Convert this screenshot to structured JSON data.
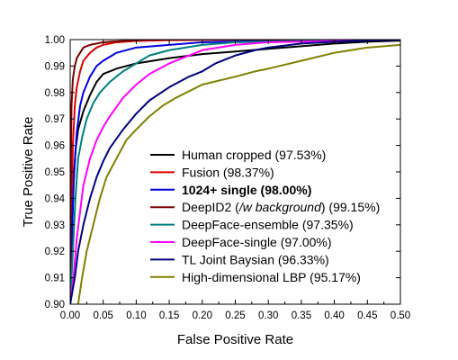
{
  "chart_data": {
    "type": "line",
    "title": "",
    "xlabel": "False Positive Rate",
    "ylabel": "True Positive Rate",
    "xlim": [
      0,
      0.5
    ],
    "ylim": [
      0.9,
      1.0
    ],
    "x_ticks": [
      "0.00",
      "0.05",
      "0.10",
      "0.15",
      "0.20",
      "0.25",
      "0.30",
      "0.35",
      "0.40",
      "0.45",
      "0.50"
    ],
    "y_ticks": [
      "0.90",
      "0.91",
      "0.92",
      "0.93",
      "0.94",
      "0.95",
      "0.96",
      "0.97",
      "0.98",
      "0.99",
      "1.00"
    ],
    "grid": false,
    "legend_position": "bottom-right",
    "series": [
      {
        "name": "Human cropped (97.53%)",
        "label_parts": [
          {
            "text": "Human cropped (97.53%)"
          }
        ],
        "color": "#000000",
        "points": [
          [
            0,
            0.9
          ],
          [
            0.002,
            0.92
          ],
          [
            0.005,
            0.945
          ],
          [
            0.008,
            0.958
          ],
          [
            0.012,
            0.966
          ],
          [
            0.02,
            0.973
          ],
          [
            0.03,
            0.979
          ],
          [
            0.04,
            0.984
          ],
          [
            0.05,
            0.987
          ],
          [
            0.07,
            0.989
          ],
          [
            0.1,
            0.991
          ],
          [
            0.15,
            0.993
          ],
          [
            0.2,
            0.9945
          ],
          [
            0.25,
            0.9955
          ],
          [
            0.3,
            0.9965
          ],
          [
            0.35,
            0.9975
          ],
          [
            0.4,
            0.9985
          ],
          [
            0.45,
            0.9992
          ],
          [
            0.5,
            0.9996
          ]
        ]
      },
      {
        "name": "Fusion (98.37%)",
        "label_parts": [
          {
            "text": "Fusion (98.37%)"
          }
        ],
        "color": "#e00000",
        "points": [
          [
            0,
            0.9
          ],
          [
            0.002,
            0.93
          ],
          [
            0.004,
            0.96
          ],
          [
            0.007,
            0.975
          ],
          [
            0.01,
            0.982
          ],
          [
            0.015,
            0.988
          ],
          [
            0.02,
            0.992
          ],
          [
            0.03,
            0.995
          ],
          [
            0.04,
            0.997
          ],
          [
            0.05,
            0.998
          ],
          [
            0.07,
            0.999
          ],
          [
            0.1,
            0.9995
          ],
          [
            0.15,
            0.9998
          ],
          [
            0.3,
            1.0
          ],
          [
            0.5,
            1.0
          ]
        ]
      },
      {
        "name": "1024+ single (98.00%)",
        "label_parts": [
          {
            "text": "1024+ single (98.00%)",
            "bold": true
          }
        ],
        "color": "#0000e0",
        "points": [
          [
            0,
            0.9
          ],
          [
            0.003,
            0.93
          ],
          [
            0.006,
            0.95
          ],
          [
            0.01,
            0.965
          ],
          [
            0.015,
            0.975
          ],
          [
            0.02,
            0.98
          ],
          [
            0.03,
            0.986
          ],
          [
            0.04,
            0.99
          ],
          [
            0.05,
            0.992
          ],
          [
            0.07,
            0.995
          ],
          [
            0.1,
            0.997
          ],
          [
            0.15,
            0.998
          ],
          [
            0.2,
            0.999
          ],
          [
            0.3,
            0.9995
          ],
          [
            0.5,
            1.0
          ]
        ]
      },
      {
        "name": "DeepID2 (/w background) (99.15%)",
        "label_parts": [
          {
            "text": "DeepID2 ("
          },
          {
            "text": "/w background",
            "italic": true
          },
          {
            "text": ") (99.15%)"
          }
        ],
        "color": "#7a0000",
        "points": [
          [
            0,
            0.9
          ],
          [
            0.001,
            0.95
          ],
          [
            0.002,
            0.975
          ],
          [
            0.004,
            0.985
          ],
          [
            0.007,
            0.99
          ],
          [
            0.01,
            0.993
          ],
          [
            0.015,
            0.995
          ],
          [
            0.02,
            0.997
          ],
          [
            0.03,
            0.998
          ],
          [
            0.05,
            0.999
          ],
          [
            0.08,
            0.9995
          ],
          [
            0.12,
            1.0
          ],
          [
            0.5,
            1.0
          ]
        ]
      },
      {
        "name": "DeepFace-ensemble (97.35%)",
        "label_parts": [
          {
            "text": "DeepFace-ensemble (97.35%)"
          }
        ],
        "color": "#008080",
        "points": [
          [
            0,
            0.9
          ],
          [
            0.004,
            0.92
          ],
          [
            0.008,
            0.94
          ],
          [
            0.012,
            0.955
          ],
          [
            0.018,
            0.963
          ],
          [
            0.025,
            0.97
          ],
          [
            0.035,
            0.976
          ],
          [
            0.045,
            0.98
          ],
          [
            0.06,
            0.984
          ],
          [
            0.08,
            0.988
          ],
          [
            0.1,
            0.991
          ],
          [
            0.12,
            0.994
          ],
          [
            0.15,
            0.996
          ],
          [
            0.2,
            0.998
          ],
          [
            0.25,
            0.999
          ],
          [
            0.35,
            0.9995
          ],
          [
            0.5,
            1.0
          ]
        ]
      },
      {
        "name": "DeepFace-single (97.00%)",
        "label_parts": [
          {
            "text": "DeepFace-single (97.00%)"
          }
        ],
        "color": "#ff00ff",
        "points": [
          [
            0,
            0.9
          ],
          [
            0.005,
            0.91
          ],
          [
            0.01,
            0.925
          ],
          [
            0.015,
            0.935
          ],
          [
            0.02,
            0.945
          ],
          [
            0.03,
            0.955
          ],
          [
            0.04,
            0.962
          ],
          [
            0.05,
            0.967
          ],
          [
            0.06,
            0.971
          ],
          [
            0.08,
            0.978
          ],
          [
            0.1,
            0.983
          ],
          [
            0.12,
            0.987
          ],
          [
            0.15,
            0.991
          ],
          [
            0.18,
            0.994
          ],
          [
            0.2,
            0.996
          ],
          [
            0.25,
            0.998
          ],
          [
            0.3,
            0.999
          ],
          [
            0.4,
            0.9995
          ],
          [
            0.5,
            1.0
          ]
        ]
      },
      {
        "name": "TL Joint Baysian (96.33%)",
        "label_parts": [
          {
            "text": "TL Joint Baysian (96.33%)"
          }
        ],
        "color": "#000080",
        "points": [
          [
            0,
            0.9
          ],
          [
            0.007,
            0.91
          ],
          [
            0.012,
            0.92
          ],
          [
            0.02,
            0.93
          ],
          [
            0.03,
            0.94
          ],
          [
            0.04,
            0.948
          ],
          [
            0.05,
            0.954
          ],
          [
            0.06,
            0.959
          ],
          [
            0.08,
            0.966
          ],
          [
            0.1,
            0.972
          ],
          [
            0.12,
            0.977
          ],
          [
            0.15,
            0.982
          ],
          [
            0.18,
            0.986
          ],
          [
            0.2,
            0.988
          ],
          [
            0.22,
            0.991
          ],
          [
            0.25,
            0.994
          ],
          [
            0.28,
            0.996
          ],
          [
            0.3,
            0.997
          ],
          [
            0.35,
            0.9985
          ],
          [
            0.4,
            0.9992
          ],
          [
            0.5,
            1.0
          ]
        ]
      },
      {
        "name": "High-dimensional LBP (95.17%)",
        "label_parts": [
          {
            "text": "High-dimensional LBP (95.17%)"
          }
        ],
        "color": "#808000",
        "points": [
          [
            0.012,
            0.9
          ],
          [
            0.018,
            0.91
          ],
          [
            0.025,
            0.92
          ],
          [
            0.035,
            0.93
          ],
          [
            0.045,
            0.94
          ],
          [
            0.055,
            0.948
          ],
          [
            0.07,
            0.955
          ],
          [
            0.085,
            0.962
          ],
          [
            0.1,
            0.966
          ],
          [
            0.12,
            0.971
          ],
          [
            0.14,
            0.975
          ],
          [
            0.16,
            0.978
          ],
          [
            0.2,
            0.983
          ],
          [
            0.25,
            0.986
          ],
          [
            0.28,
            0.988
          ],
          [
            0.3,
            0.989
          ],
          [
            0.35,
            0.992
          ],
          [
            0.4,
            0.995
          ],
          [
            0.45,
            0.997
          ],
          [
            0.5,
            0.998
          ]
        ]
      }
    ]
  }
}
